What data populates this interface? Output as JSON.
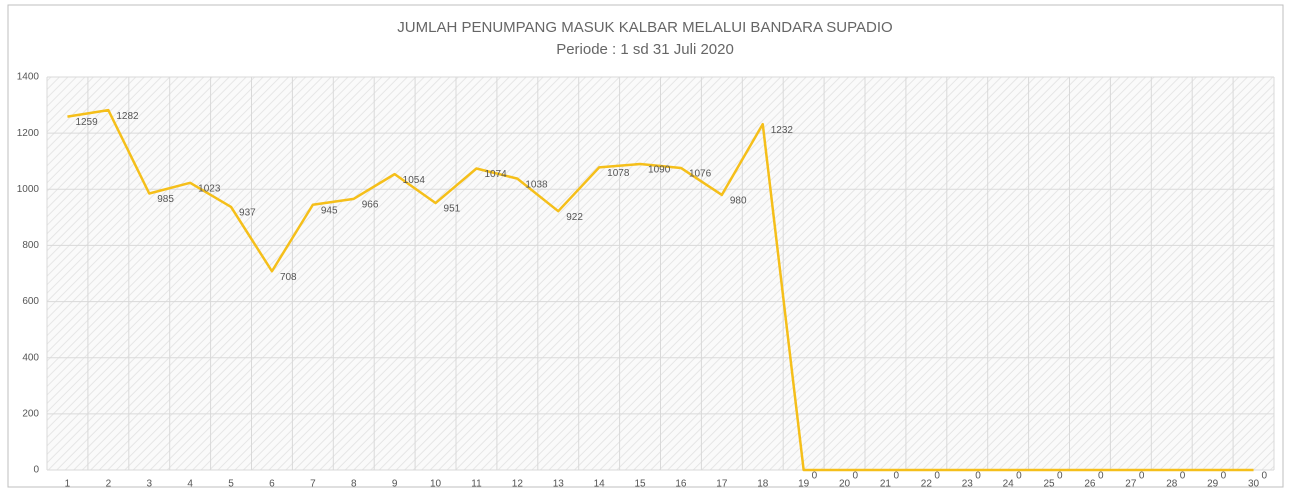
{
  "chart_data": {
    "type": "line",
    "title": "JUMLAH PENUMPANG MASUK KALBAR MELALUI BANDARA SUPADIO",
    "subtitle": "Periode : 1 sd 31 Juli 2020",
    "categories": [
      "1",
      "2",
      "3",
      "4",
      "5",
      "6",
      "7",
      "8",
      "9",
      "10",
      "11",
      "12",
      "13",
      "14",
      "15",
      "16",
      "17",
      "18",
      "19",
      "20",
      "21",
      "22",
      "23",
      "24",
      "25",
      "26",
      "27",
      "28",
      "29",
      "30"
    ],
    "values": [
      1259,
      1282,
      985,
      1023,
      937,
      708,
      945,
      966,
      1054,
      951,
      1074,
      1038,
      922,
      1078,
      1090,
      1076,
      980,
      1232,
      0,
      0,
      0,
      0,
      0,
      0,
      0,
      0,
      0,
      0,
      0,
      0
    ],
    "color": "#f5bf1a",
    "ylim": [
      0,
      1400
    ],
    "yticks": [
      0,
      200,
      400,
      600,
      800,
      1000,
      1200,
      1400
    ],
    "grid": true
  }
}
